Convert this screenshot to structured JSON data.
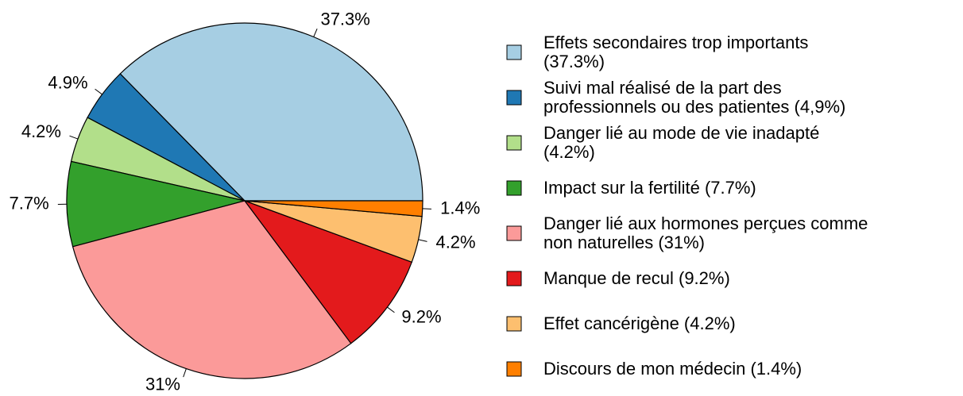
{
  "chart_data": {
    "type": "pie",
    "categories": [
      "Effets secondaires trop importants\n(37.3%)",
      "Suivi mal réalisé de la part des\nprofessionnels ou des patientes (4,9%)",
      "Danger lié au mode de vie inadapté\n(4.2%)",
      "Impact sur la fertilité (7.7%)",
      "Danger lié aux hormones perçues comme\nnon naturelles (31%)",
      "Manque de recul (9.2%)",
      "Effet cancérigène (4.2%)",
      "Discours de mon médecin (1.4%)"
    ],
    "values": [
      37.3,
      4.9,
      4.2,
      7.7,
      31,
      9.2,
      4.2,
      1.4
    ],
    "value_labels": [
      "37.3%",
      "4.9%",
      "4.2%",
      "7.7%",
      "31%",
      "9.2%",
      "4.2%",
      "1.4%"
    ],
    "colors": [
      "#A6CEE3",
      "#1F78B4",
      "#B2DF8A",
      "#33A02C",
      "#FB9A99",
      "#E31A1C",
      "#FDBF6F",
      "#FF7F00"
    ]
  }
}
